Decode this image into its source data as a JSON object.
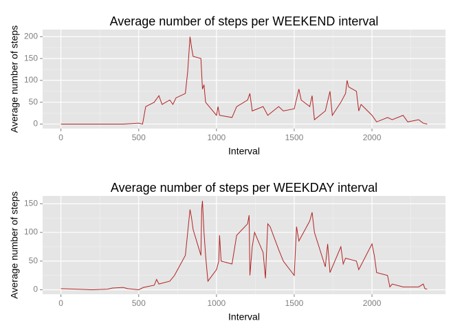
{
  "chart_data": [
    {
      "type": "line",
      "title": "Average number of steps per WEEKEND interval",
      "x_label": "Interval",
      "y_label": "Average number of steps",
      "series": [
        {
          "color": "#b22222",
          "x": [
            0,
            100,
            200,
            300,
            400,
            500,
            525,
            545,
            600,
            630,
            650,
            700,
            720,
            740,
            800,
            815,
            830,
            840,
            850,
            900,
            910,
            920,
            930,
            1000,
            1010,
            1020,
            1100,
            1130,
            1200,
            1215,
            1230,
            1300,
            1330,
            1400,
            1430,
            1500,
            1530,
            1545,
            1600,
            1615,
            1630,
            1700,
            1730,
            1745,
            1800,
            1830,
            1840,
            1850,
            1900,
            1915,
            1930,
            2000,
            2030,
            2100,
            2130,
            2200,
            2230,
            2300,
            2330,
            2355
          ],
          "values": [
            0,
            0,
            0,
            0,
            0,
            2,
            0,
            40,
            50,
            65,
            45,
            55,
            45,
            60,
            70,
            120,
            200,
            175,
            155,
            150,
            80,
            90,
            50,
            20,
            40,
            20,
            15,
            40,
            55,
            70,
            30,
            40,
            20,
            40,
            30,
            35,
            80,
            55,
            40,
            65,
            10,
            30,
            75,
            20,
            50,
            70,
            100,
            85,
            75,
            30,
            45,
            20,
            5,
            15,
            10,
            20,
            5,
            10,
            2,
            0
          ]
        }
      ],
      "xlim": [
        -117.75,
        2472.75
      ],
      "xticks": [
        0,
        500,
        1000,
        1500,
        2000
      ],
      "xminor": [
        250,
        750,
        1250,
        1750,
        2250
      ],
      "ylim": [
        -10.3,
        216.3
      ],
      "yticks": [
        0,
        50,
        100,
        150,
        200
      ],
      "yminor": [
        25,
        75,
        125,
        175
      ],
      "grid": true
    },
    {
      "type": "line",
      "title": "Average number of steps per WEEKDAY interval",
      "x_label": "Interval",
      "y_label": "Average number of steps",
      "series": [
        {
          "color": "#b22222",
          "x": [
            0,
            100,
            200,
            300,
            330,
            400,
            430,
            500,
            530,
            600,
            615,
            630,
            700,
            730,
            800,
            815,
            830,
            840,
            850,
            900,
            905,
            910,
            920,
            930,
            945,
            1000,
            1015,
            1020,
            1030,
            1100,
            1130,
            1200,
            1210,
            1215,
            1230,
            1245,
            1300,
            1315,
            1330,
            1345,
            1400,
            1430,
            1500,
            1515,
            1530,
            1600,
            1615,
            1630,
            1700,
            1715,
            1730,
            1800,
            1815,
            1830,
            1900,
            1915,
            2000,
            2015,
            2030,
            2100,
            2115,
            2130,
            2200,
            2230,
            2300,
            2330,
            2340,
            2355
          ],
          "values": [
            2,
            1,
            0,
            1,
            3,
            4,
            2,
            0,
            4,
            8,
            18,
            10,
            15,
            25,
            60,
            100,
            140,
            125,
            105,
            60,
            140,
            155,
            100,
            60,
            15,
            35,
            50,
            95,
            50,
            45,
            95,
            115,
            130,
            25,
            75,
            100,
            65,
            20,
            115,
            110,
            70,
            50,
            25,
            110,
            85,
            120,
            135,
            100,
            40,
            80,
            30,
            75,
            45,
            55,
            50,
            35,
            80,
            60,
            30,
            25,
            5,
            10,
            5,
            5,
            5,
            10,
            2,
            1
          ]
        }
      ],
      "xlim": [
        -117.75,
        2472.75
      ],
      "xticks": [
        0,
        500,
        1000,
        1500,
        2000
      ],
      "xminor": [
        250,
        750,
        1250,
        1750,
        2250
      ],
      "ylim": [
        -7.8,
        163.6
      ],
      "yticks": [
        0,
        50,
        100,
        150
      ],
      "yminor": [
        25,
        75,
        125
      ],
      "grid": true
    }
  ]
}
